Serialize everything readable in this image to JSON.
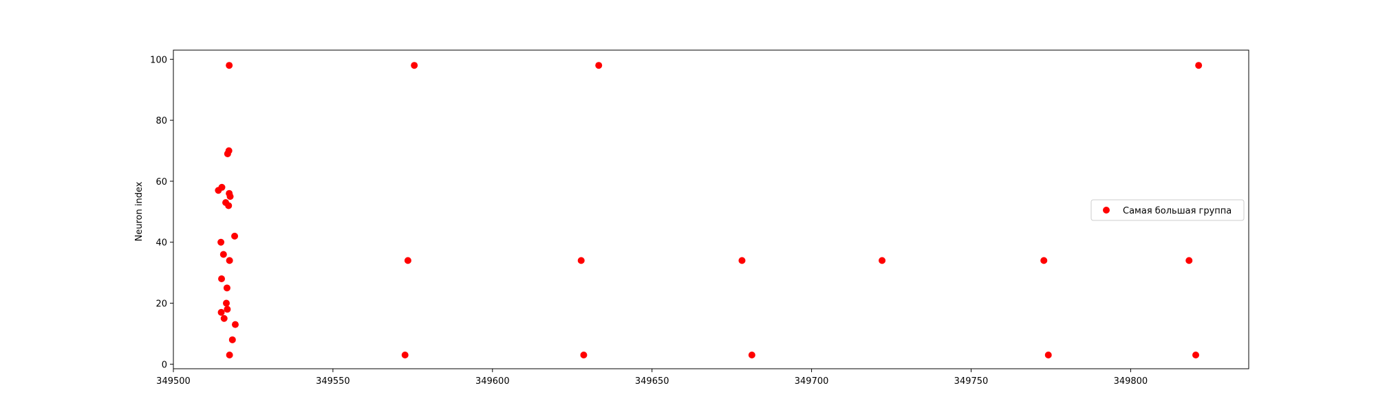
{
  "chart_data": {
    "type": "scatter",
    "title": "",
    "xlabel": "",
    "ylabel": "Neuron index",
    "xlim": [
      349500,
      349837
    ],
    "ylim": [
      -1.5,
      103
    ],
    "xticks": [
      349500,
      349550,
      349600,
      349650,
      349700,
      349750,
      349800
    ],
    "yticks": [
      0,
      20,
      40,
      60,
      80,
      100
    ],
    "grid": false,
    "legend_position": "center-right",
    "series": [
      {
        "name": "Самая большая группа",
        "color": "#ff0000",
        "points": [
          [
            349517.5,
            98
          ],
          [
            349575.5,
            98
          ],
          [
            349633.3,
            98
          ],
          [
            349821.3,
            98
          ],
          [
            349517.4,
            70
          ],
          [
            349517.0,
            69
          ],
          [
            349515.2,
            58
          ],
          [
            349514.1,
            57
          ],
          [
            349517.5,
            56
          ],
          [
            349517.8,
            55
          ],
          [
            349516.4,
            53
          ],
          [
            349517.3,
            52
          ],
          [
            349519.2,
            42
          ],
          [
            349514.9,
            40
          ],
          [
            349515.7,
            36
          ],
          [
            349517.6,
            34
          ],
          [
            349573.5,
            34
          ],
          [
            349627.8,
            34
          ],
          [
            349678.2,
            34
          ],
          [
            349722.1,
            34
          ],
          [
            349772.8,
            34
          ],
          [
            349818.3,
            34
          ],
          [
            349515.1,
            28
          ],
          [
            349516.8,
            25
          ],
          [
            349516.6,
            20
          ],
          [
            349516.9,
            18
          ],
          [
            349515.0,
            17
          ],
          [
            349515.9,
            15
          ],
          [
            349519.4,
            13
          ],
          [
            349518.5,
            8
          ],
          [
            349517.6,
            3
          ],
          [
            349572.6,
            3
          ],
          [
            349628.6,
            3
          ],
          [
            349681.3,
            3
          ],
          [
            349774.2,
            3
          ],
          [
            349820.4,
            3
          ]
        ]
      }
    ]
  }
}
